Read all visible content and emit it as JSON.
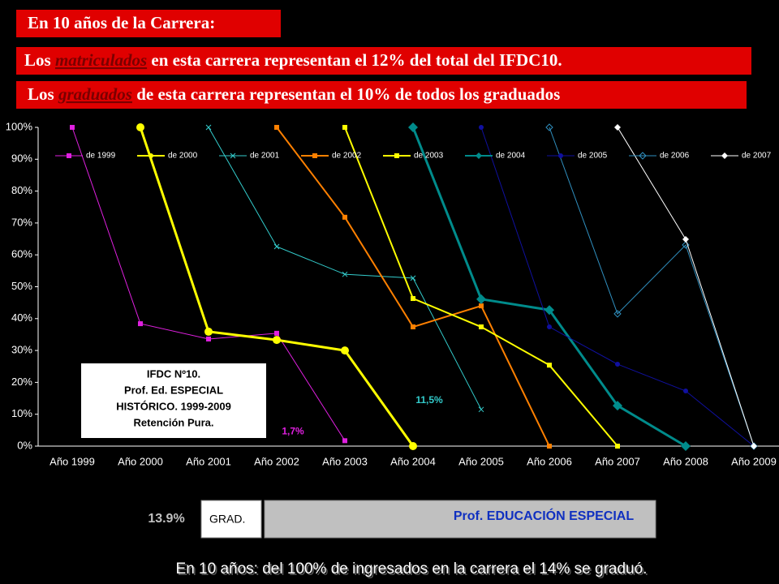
{
  "header": {
    "title": "En 10 años de la Carrera:",
    "line1": [
      "Los ",
      "matriculados",
      " en esta carrera representan el 12% del total  del IFDC10."
    ],
    "line2": [
      "Los ",
      "graduados",
      " de esta carrera representan el 10% de todos los graduados"
    ]
  },
  "chart_data": {
    "type": "line",
    "categories": [
      "Año 1999",
      "Año 2000",
      "Año 2001",
      "Año 2002",
      "Año 2003",
      "Año 2004",
      "Año 2005",
      "Año 2006",
      "Año 2007",
      "Año 2008",
      "Año 2009"
    ],
    "ylim": [
      0,
      100
    ],
    "yticks": [
      {
        "value": 0,
        "label": "0%"
      },
      {
        "value": 10,
        "label": "10%"
      },
      {
        "value": 20,
        "label": "20%"
      },
      {
        "value": 30,
        "label": "30%"
      },
      {
        "value": 40,
        "label": "40%"
      },
      {
        "value": 50,
        "label": "50%"
      },
      {
        "value": 60,
        "label": "60%"
      },
      {
        "value": 70,
        "label": "70%"
      },
      {
        "value": 80,
        "label": "80%"
      },
      {
        "value": 90,
        "label": "90%"
      },
      {
        "value": 100,
        "label": "100%"
      }
    ],
    "grid": false,
    "series": [
      {
        "name": "de 1999",
        "color": "#e020e0",
        "marker": "square",
        "width": 1,
        "values": [
          100,
          38.4,
          33.6,
          35.4,
          1.7,
          null,
          null,
          null,
          null,
          null,
          null
        ],
        "value_labels": [
          null,
          null,
          null,
          null,
          "1,7%",
          null,
          null,
          null,
          null,
          null,
          null
        ]
      },
      {
        "name": "de 2000",
        "color": "#ffff00",
        "marker": "circle",
        "width": 3,
        "values": [
          null,
          100,
          35.9,
          33.3,
          30,
          0,
          null,
          null,
          null,
          null,
          null
        ]
      },
      {
        "name": "de 2001",
        "color": "#33cccc",
        "marker": "x",
        "width": 1,
        "values": [
          null,
          null,
          100,
          62.6,
          53.9,
          52.7,
          11.5,
          null,
          null,
          null,
          null
        ],
        "value_labels": [
          null,
          null,
          null,
          null,
          null,
          null,
          "11,5%",
          null,
          null,
          null,
          null
        ]
      },
      {
        "name": "de 2002",
        "color": "#ff8000",
        "marker": "square",
        "width": 2,
        "values": [
          null,
          null,
          null,
          100,
          71.8,
          37.4,
          44,
          0,
          null,
          null,
          null
        ]
      },
      {
        "name": "de 2003",
        "color": "#ffff00",
        "marker": "square",
        "width": 2,
        "values": [
          null,
          null,
          null,
          null,
          100,
          46.3,
          37.4,
          25.4,
          0,
          null,
          null
        ]
      },
      {
        "name": "de 2004",
        "color": "#008b8b",
        "marker": "diamond",
        "width": 3,
        "values": [
          null,
          null,
          null,
          null,
          null,
          100,
          46.1,
          42.7,
          12.7,
          0,
          null
        ]
      },
      {
        "name": "de 2005",
        "color": "#1010a0",
        "marker": "circle",
        "width": 1,
        "values": [
          null,
          null,
          null,
          null,
          null,
          null,
          100,
          37.4,
          25.7,
          17.3,
          0
        ]
      },
      {
        "name": "de 2006",
        "color": "#3090c0",
        "marker": "diamond",
        "width": 1,
        "values": [
          null,
          null,
          null,
          null,
          null,
          null,
          null,
          100,
          41.5,
          63.1,
          0
        ]
      },
      {
        "name": "de 2007",
        "color": "#ffffff",
        "marker": "diamond",
        "width": 1,
        "values": [
          null,
          null,
          null,
          null,
          null,
          null,
          null,
          null,
          100,
          64.9,
          0
        ]
      }
    ]
  },
  "note": [
    "IFDC Nº10.",
    "Prof. Ed. ESPECIAL",
    "HISTÓRICO. 1999-2009",
    "Retención Pura."
  ],
  "footer": {
    "percent": "13.9%",
    "grad": "GRAD.",
    "program": "Prof. EDUCACIÓN ESPECIAL",
    "summary": "En 10 años: del 100% de ingresados en la carrera el 14% se graduó."
  }
}
